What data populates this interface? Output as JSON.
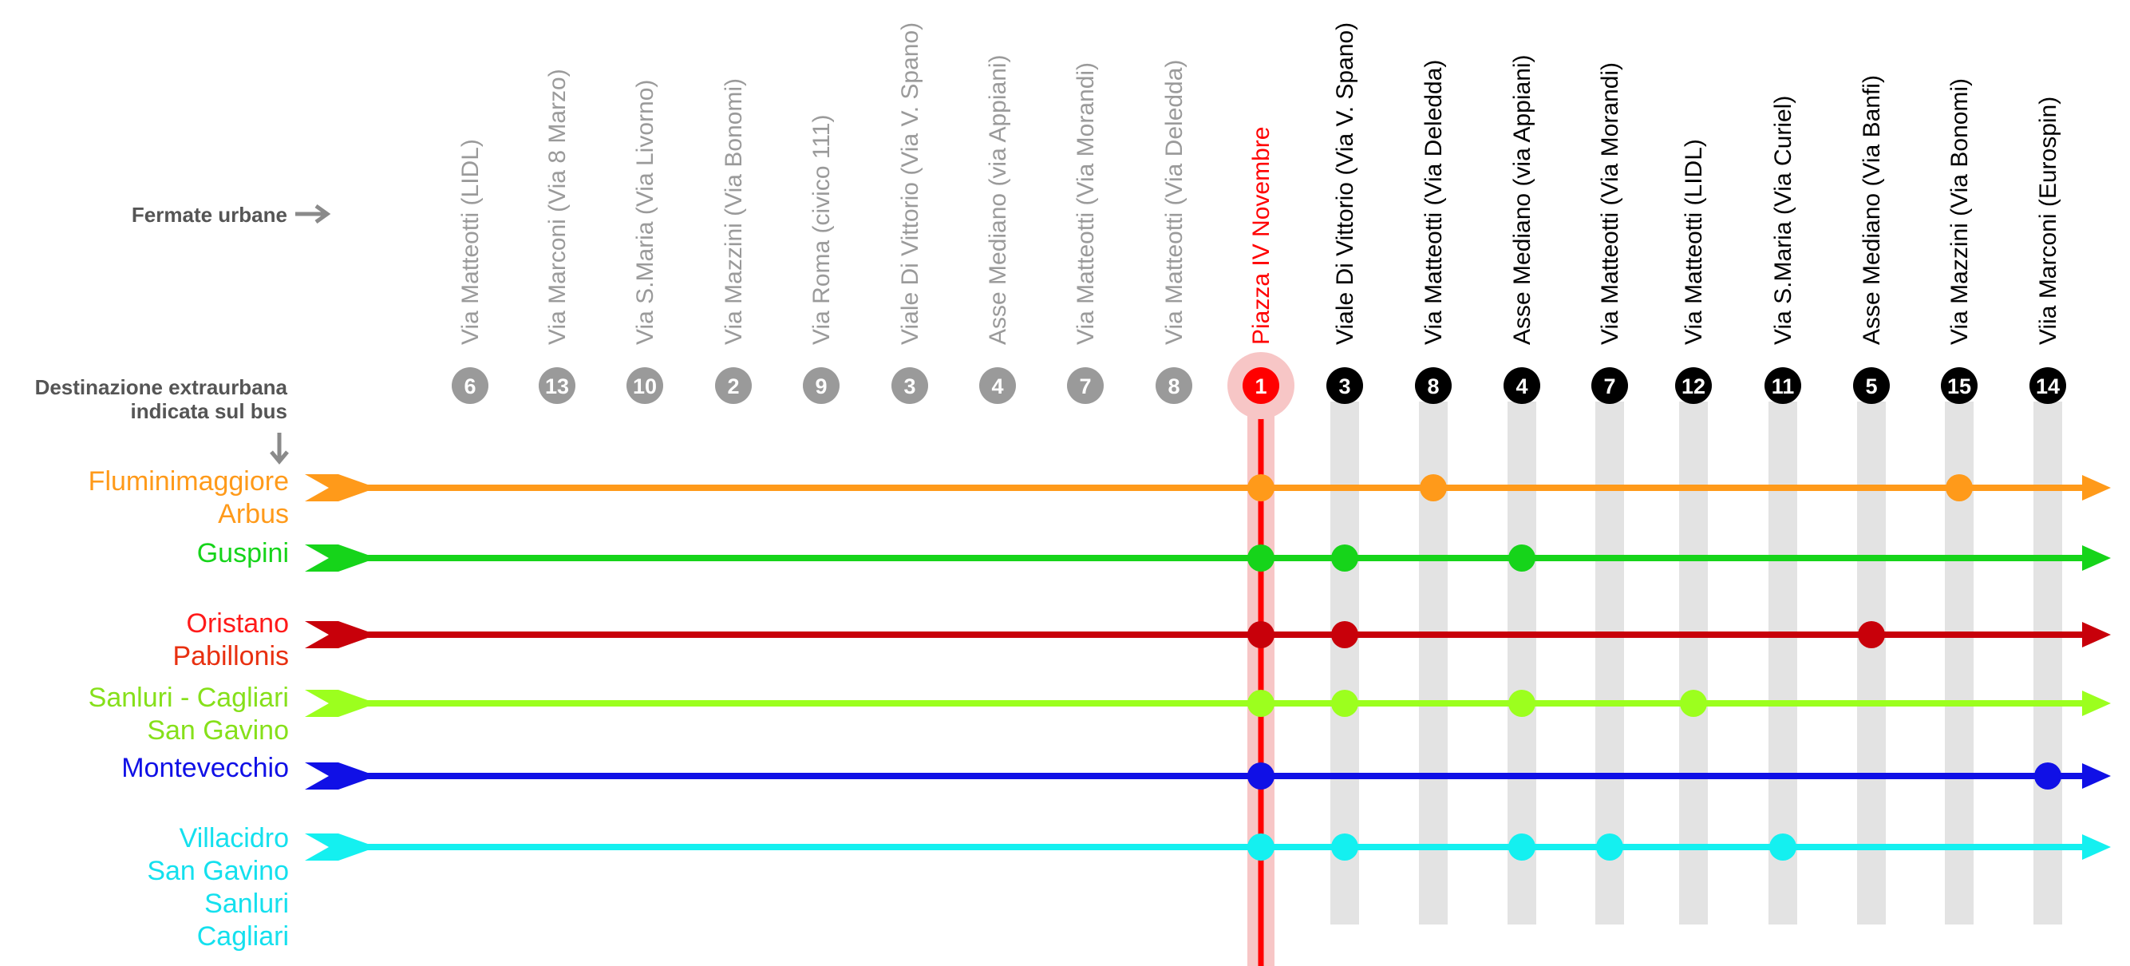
{
  "labels": {
    "fermate_urbane": "Fermate urbane",
    "destinazione_line1": "Destinazione extraurbana",
    "destinazione_line2": "indicata sul bus"
  },
  "colors": {
    "gray_stop": "#9a9a9a",
    "red_stop": "#ff0000",
    "hub_halo": "#f7c6c6",
    "band": "#e3e3e3",
    "header_text": "#555555"
  },
  "stops_left": [
    {
      "num": "6",
      "name": "Via Matteotti (LIDL)"
    },
    {
      "num": "13",
      "name": "Via Marconi (Via 8 Marzo)"
    },
    {
      "num": "10",
      "name": "Via S.Maria (Via Livorno)"
    },
    {
      "num": "2",
      "name": "Via Mazzini (Via Bonomi)"
    },
    {
      "num": "9",
      "name": "Via Roma (civico 111)"
    },
    {
      "num": "3",
      "name": "Viale Di Vittorio (Via V. Spano)"
    },
    {
      "num": "4",
      "name": "Asse Mediano (via Appiani)"
    },
    {
      "num": "7",
      "name": "Via Matteotti (Via Morandi)"
    },
    {
      "num": "8",
      "name": "Via Matteotti (Via Deledda)"
    }
  ],
  "hub": {
    "num": "1",
    "name": "Piazza IV Novembre"
  },
  "stops_right": [
    {
      "num": "3",
      "name": "Viale Di Vittorio (Via V. Spano)"
    },
    {
      "num": "8",
      "name": "Via Matteotti (Via Deledda)"
    },
    {
      "num": "4",
      "name": "Asse Mediano (via Appiani)"
    },
    {
      "num": "7",
      "name": "Via Matteotti (Via Morandi)"
    },
    {
      "num": "12",
      "name": "Via Matteotti (LIDL)"
    },
    {
      "num": "11",
      "name": "Via S.Maria (Via Curiel)"
    },
    {
      "num": "5",
      "name": "Asse Mediano (Via Banfi)"
    },
    {
      "num": "15",
      "name": "Via Mazzini (Via Bonomi)"
    },
    {
      "num": "14",
      "name": "Viia Marconi (Eurospin)"
    }
  ],
  "routes": [
    {
      "lines": [
        "Fluminimaggiore",
        "Arbus"
      ],
      "color": "#ff9a1a",
      "stops": [
        "1",
        "8",
        "15"
      ]
    },
    {
      "lines": [
        "Guspini"
      ],
      "color": "#16d41a",
      "stops": [
        "1",
        "3",
        "4"
      ]
    },
    {
      "lines": [
        "Oristano",
        "Pabillonis"
      ],
      "color": "#c8000a",
      "label_colors": [
        "#ff1a1a",
        "#e83010"
      ],
      "stops": [
        "1",
        "3",
        "5"
      ]
    },
    {
      "lines": [
        "Sanluri - Cagliari",
        "San Gavino"
      ],
      "color": "#9cff1e",
      "label_colors": [
        "#86e01a",
        "#86e01a"
      ],
      "stops": [
        "1",
        "3",
        "4",
        "12"
      ]
    },
    {
      "lines": [
        "Montevecchio"
      ],
      "color": "#1010e6",
      "stops": [
        "1",
        "14"
      ]
    },
    {
      "lines": [
        "Villacidro",
        "San Gavino",
        "Sanluri",
        "Cagliari"
      ],
      "color": "#14f0f0",
      "label_colors": [
        "#14e0ee",
        "#14e0ee",
        "#14e0ee",
        "#14e0ee"
      ],
      "stops": [
        "1",
        "3",
        "4",
        "7",
        "11"
      ]
    }
  ]
}
